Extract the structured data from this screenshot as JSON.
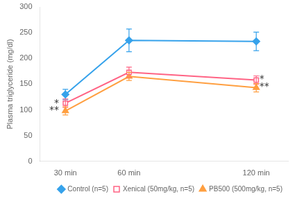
{
  "chart_data": {
    "type": "line",
    "x": [
      30,
      60,
      120
    ],
    "xlim": [
      18,
      135
    ],
    "xticks": [
      {
        "value": 30,
        "label": "30 min"
      },
      {
        "value": 60,
        "label": "60 min"
      },
      {
        "value": 120,
        "label": "120 min"
      }
    ],
    "ylabel": "Plasma triglyceride (mg/dl)",
    "ylim": [
      0,
      300
    ],
    "yticks": [
      0,
      50,
      100,
      150,
      200,
      250,
      300
    ],
    "grid": false,
    "legend": "lower right",
    "series": [
      {
        "name": "Control (n=5)",
        "marker": "diamond",
        "values": [
          130,
          235,
          233
        ],
        "errors": [
          10,
          22,
          18
        ]
      },
      {
        "name": "Xenical (50mg/kg, n=5)",
        "marker": "square",
        "values": [
          113,
          173,
          158
        ],
        "errors": [
          8,
          10,
          8
        ]
      },
      {
        "name": "PB500 (500mg/kg, n=5)",
        "marker": "triangle",
        "values": [
          98,
          165,
          143
        ],
        "errors": [
          8,
          8,
          8
        ]
      }
    ],
    "annotations": [
      {
        "text": "*",
        "x": 27.0,
        "y": 117
      },
      {
        "text": "**",
        "x": 27.0,
        "y": 103
      },
      {
        "text": "*",
        "x": 121.5,
        "y": 163
      },
      {
        "text": "**",
        "x": 121.5,
        "y": 149
      }
    ]
  }
}
